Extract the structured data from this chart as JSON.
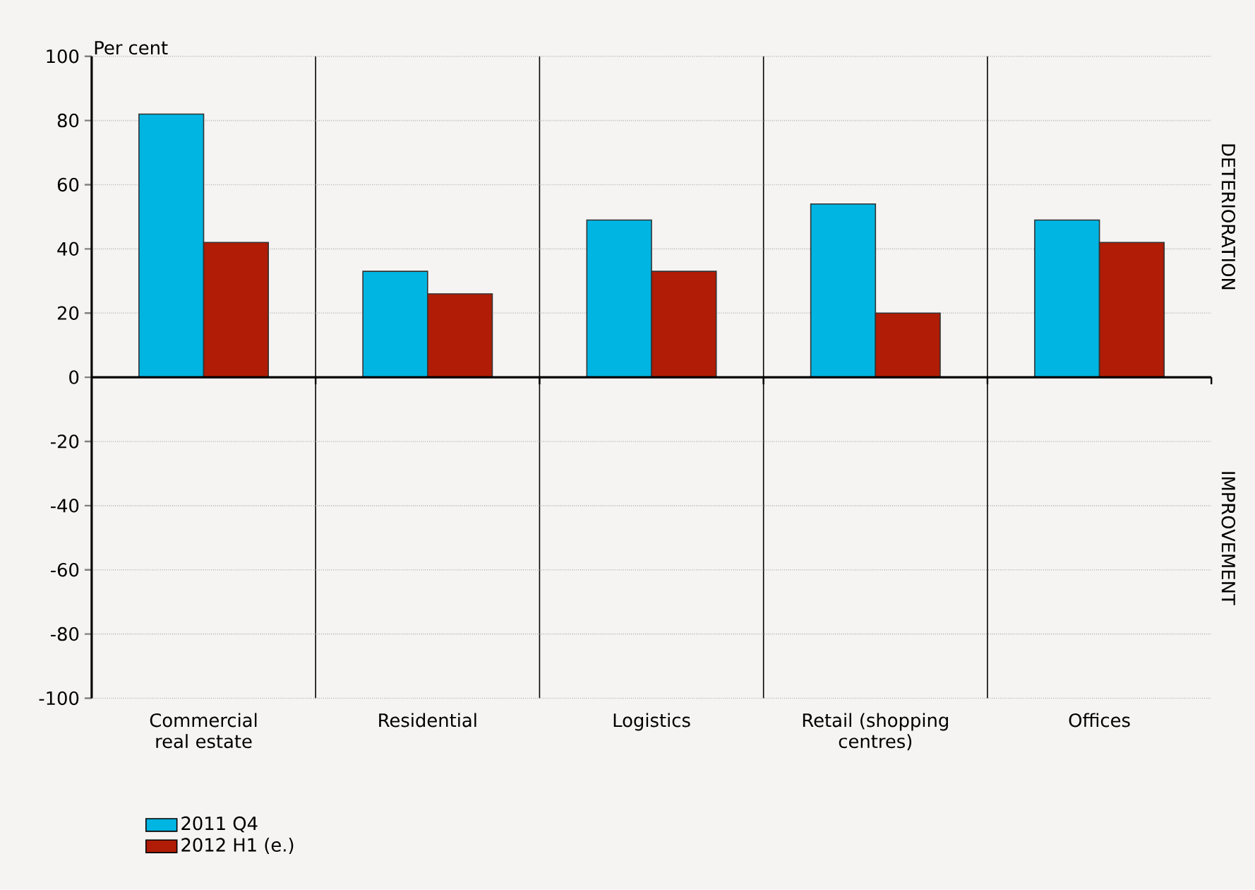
{
  "chart_data": {
    "type": "bar",
    "ylabel": "Per cent",
    "categories": [
      "Commercial real estate",
      "Residential",
      "Logistics",
      "Retail (shopping centres)",
      "Offices"
    ],
    "series": [
      {
        "name": "2011 Q4",
        "color": "#00b5e2",
        "values": [
          82,
          33,
          49,
          54,
          49
        ]
      },
      {
        "name": "2012 H1 (e.)",
        "color": "#b01c05",
        "values": [
          42,
          26,
          33,
          20,
          42
        ]
      }
    ],
    "ylim": [
      -100,
      100
    ],
    "yticks": [
      -100,
      -80,
      -60,
      -40,
      -20,
      0,
      20,
      40,
      60,
      80,
      100
    ],
    "grid": "y",
    "legend": "bottom left",
    "annotations": [
      "DETERIORATION",
      "IMPROVEMENT"
    ]
  }
}
